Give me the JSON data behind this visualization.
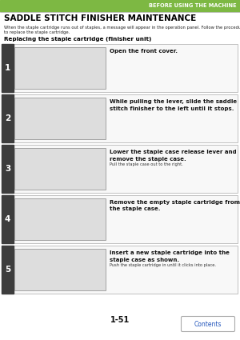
{
  "page_bg": "#ffffff",
  "header_bar_color": "#7db843",
  "header_text": "BEFORE USING THE MACHINE",
  "header_text_color": "#ffffff",
  "title": "SADDLE STITCH FINISHER MAINTENANCE",
  "title_color": "#000000",
  "intro_line1": "When the staple cartridge runs out of staples, a message will appear in the operation panel. Follow the procedure below",
  "intro_line2": "to replace the staple cartridge.",
  "section_title": "Replacing the staple cartridge (finisher unit)",
  "steps": [
    {
      "num": "1",
      "main_text": "Open the front cover.",
      "sub_text": "",
      "bold_main": true
    },
    {
      "num": "2",
      "main_text": "While pulling the lever, slide the saddle\nstitch finisher to the left until it stops.",
      "sub_text": "",
      "bold_main": true
    },
    {
      "num": "3",
      "main_text": "Lower the staple case release lever and\nremove the staple case.",
      "sub_text": "Pull the staple case out to the right.",
      "bold_main": true
    },
    {
      "num": "4",
      "main_text": "Remove the empty staple cartridge from\nthe staple case.",
      "sub_text": "",
      "bold_main": true
    },
    {
      "num": "5",
      "main_text": "Insert a new staple cartridge into the\nstaple case as shown.",
      "sub_text": "Push the staple cartridge in until it clicks into place.",
      "bold_main": true
    }
  ],
  "step_num_bg": "#3d3d3d",
  "step_num_color": "#ffffff",
  "img_box_bg": "#e8e8e8",
  "img_box_border": "#888888",
  "page_num": "1-51",
  "contents_text": "Contents",
  "contents_border": "#aaaaaa",
  "contents_text_color": "#2255bb",
  "divider_color": "#cccccc",
  "step_outer_border": "#aaaaaa",
  "step_outer_bg": "#f8f8f8"
}
